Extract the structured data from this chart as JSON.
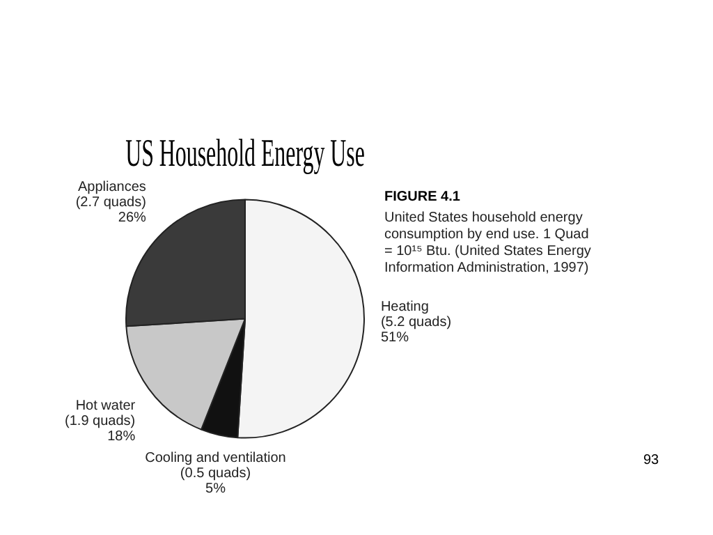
{
  "chart_data": {
    "type": "pie",
    "title": "US Household Energy Use",
    "categories": [
      "Heating",
      "Cooling and ventilation",
      "Hot water",
      "Appliances"
    ],
    "values": [
      51,
      5,
      18,
      26
    ],
    "value_labels": [
      "(5.2 quads) 51%",
      "(0.5 quads) 5%",
      "(1.9 quads) 18%",
      "(2.7 quads) 26%"
    ],
    "colors": [
      "#f4f4f4",
      "#111111",
      "#c8c8c8",
      "#3a3a3a"
    ],
    "annotations": [
      "FIGURE 4.1",
      "United States household energy consumption by end use. 1 Quad = 10¹⁵ Btu. (United States Energy Information Administration, 1997)",
      "93"
    ]
  }
}
